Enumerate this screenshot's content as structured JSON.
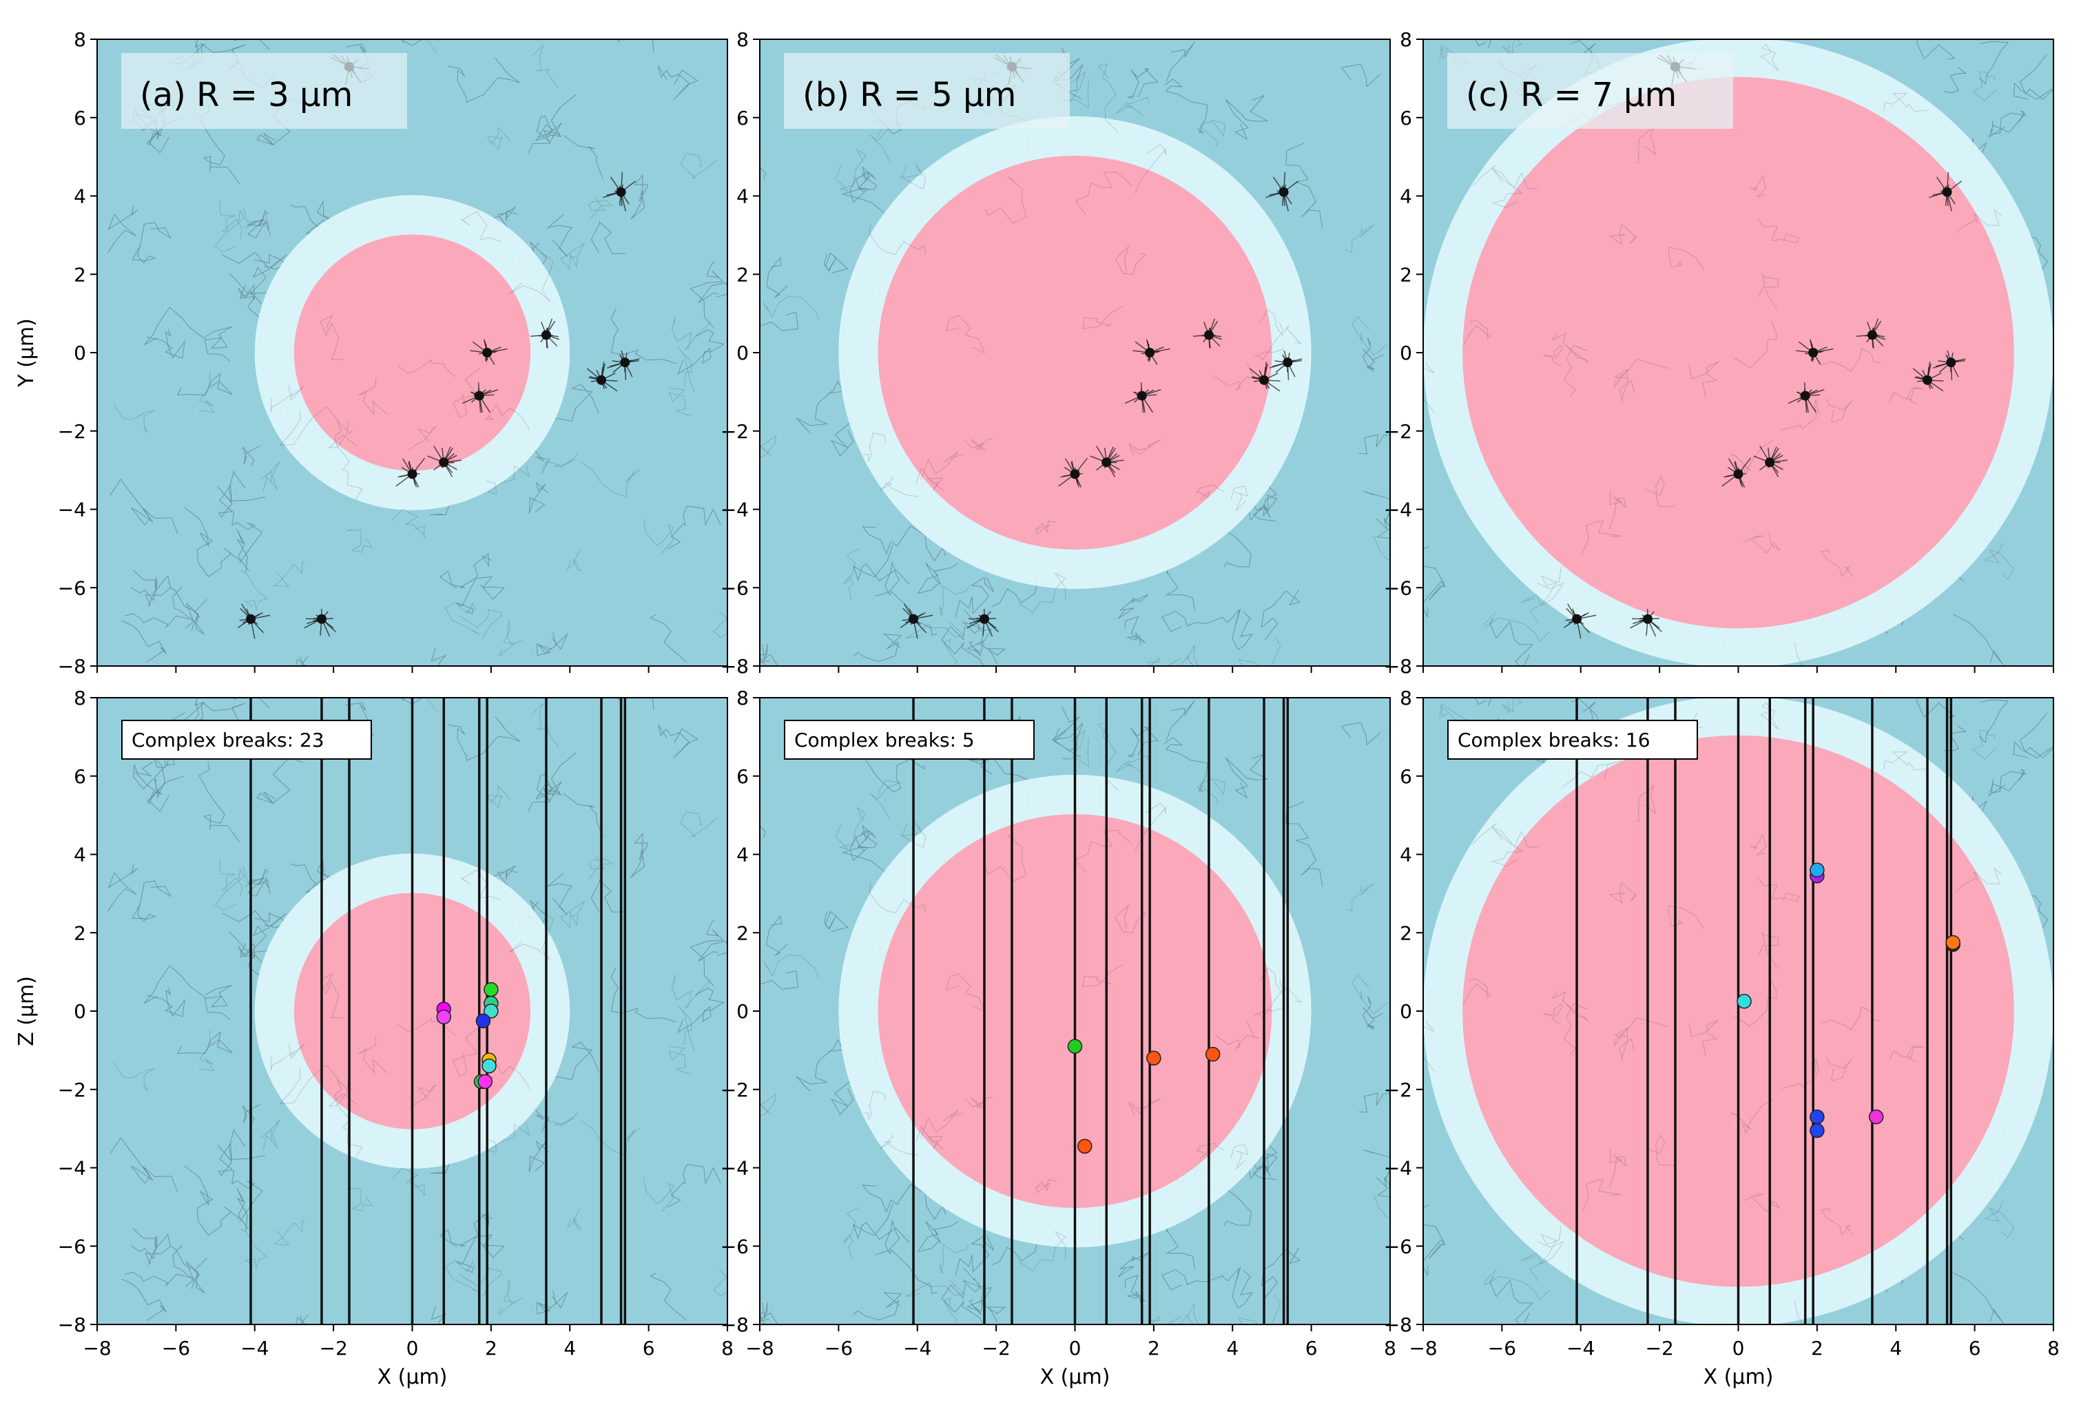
{
  "figure": {
    "ylabel_top": "Y (μm)",
    "ylabel_bottom": "Z (μm)",
    "xlabel": "X (μm)"
  },
  "colors": {
    "background": "#95cfdc",
    "shell": "#dcf6fa",
    "sphere": "#fba8bb",
    "track": "#111111",
    "label_box": "#e6f3f6"
  },
  "chart_data": [
    {
      "type": "scatter",
      "panel": "a-top",
      "title": "(a) R = 3 μm",
      "xlabel": "",
      "ylabel": "Y (μm)",
      "xlim": [
        -8,
        8
      ],
      "ylim": [
        -8,
        8
      ],
      "xticks": [
        -8,
        -6,
        -4,
        -2,
        0,
        2,
        4,
        6,
        8
      ],
      "yticks": [
        -8,
        -6,
        -4,
        -2,
        0,
        2,
        4,
        6,
        8
      ],
      "sphere_radius": 3,
      "shell_radius": 4,
      "track_centers": [
        {
          "x": 1.9,
          "y": 0.0
        },
        {
          "x": 1.7,
          "y": -1.1
        },
        {
          "x": 3.4,
          "y": 0.45
        },
        {
          "x": 5.4,
          "y": -0.25
        },
        {
          "x": 4.8,
          "y": -0.7
        },
        {
          "x": 0.0,
          "y": -3.1
        },
        {
          "x": 0.8,
          "y": -2.8
        },
        {
          "x": 5.3,
          "y": 4.1
        },
        {
          "x": -4.1,
          "y": -6.8
        },
        {
          "x": -2.3,
          "y": -6.8
        },
        {
          "x": -1.6,
          "y": 7.3
        }
      ]
    },
    {
      "type": "scatter",
      "panel": "b-top",
      "title": "(b) R = 5 μm",
      "xlabel": "",
      "ylabel": "",
      "xlim": [
        -8,
        8
      ],
      "ylim": [
        -8,
        8
      ],
      "xticks": [
        -8,
        -6,
        -4,
        -2,
        0,
        2,
        4,
        6,
        8
      ],
      "yticks": [
        -8,
        -6,
        -4,
        -2,
        0,
        2,
        4,
        6,
        8
      ],
      "sphere_radius": 5,
      "shell_radius": 6,
      "track_centers": [
        {
          "x": 1.9,
          "y": 0.0
        },
        {
          "x": 1.7,
          "y": -1.1
        },
        {
          "x": 3.4,
          "y": 0.45
        },
        {
          "x": 5.4,
          "y": -0.25
        },
        {
          "x": 4.8,
          "y": -0.7
        },
        {
          "x": 0.0,
          "y": -3.1
        },
        {
          "x": 0.8,
          "y": -2.8
        },
        {
          "x": 5.3,
          "y": 4.1
        },
        {
          "x": -4.1,
          "y": -6.8
        },
        {
          "x": -2.3,
          "y": -6.8
        },
        {
          "x": -1.6,
          "y": 7.3
        }
      ]
    },
    {
      "type": "scatter",
      "panel": "c-top",
      "title": "(c) R = 7 μm",
      "xlabel": "",
      "ylabel": "",
      "xlim": [
        -8,
        8
      ],
      "ylim": [
        -8,
        8
      ],
      "xticks": [
        -8,
        -6,
        -4,
        -2,
        0,
        2,
        4,
        6,
        8
      ],
      "yticks": [
        -8,
        -6,
        -4,
        -2,
        0,
        2,
        4,
        6,
        8
      ],
      "sphere_radius": 7,
      "shell_radius": 8,
      "track_centers": [
        {
          "x": 1.9,
          "y": 0.0
        },
        {
          "x": 1.7,
          "y": -1.1
        },
        {
          "x": 3.4,
          "y": 0.45
        },
        {
          "x": 5.4,
          "y": -0.25
        },
        {
          "x": 4.8,
          "y": -0.7
        },
        {
          "x": 0.0,
          "y": -3.1
        },
        {
          "x": 0.8,
          "y": -2.8
        },
        {
          "x": 5.3,
          "y": 4.1
        },
        {
          "x": -4.1,
          "y": -6.8
        },
        {
          "x": -2.3,
          "y": -6.8
        },
        {
          "x": -1.6,
          "y": 7.3
        }
      ]
    },
    {
      "type": "scatter",
      "panel": "a-bottom",
      "annotation": "Complex breaks: 23",
      "xlabel": "X (μm)",
      "ylabel": "Z (μm)",
      "xlim": [
        -8,
        8
      ],
      "ylim": [
        -8,
        8
      ],
      "xticks": [
        -8,
        -6,
        -4,
        -2,
        0,
        2,
        4,
        6,
        8
      ],
      "yticks": [
        -8,
        -6,
        -4,
        -2,
        0,
        2,
        4,
        6,
        8
      ],
      "sphere_radius": 3,
      "shell_radius": 4,
      "track_x": [
        -4.1,
        -2.3,
        -1.6,
        0.0,
        0.8,
        1.7,
        1.9,
        3.4,
        4.8,
        5.3,
        5.4
      ],
      "points": [
        {
          "x": 0.8,
          "y": 0.05,
          "color": "#ff00ff"
        },
        {
          "x": 0.8,
          "y": -0.15,
          "color": "#ee44ff"
        },
        {
          "x": 2.0,
          "y": 0.55,
          "color": "#22dd22"
        },
        {
          "x": 2.0,
          "y": 0.2,
          "color": "#33cc88"
        },
        {
          "x": 2.0,
          "y": 0.0,
          "color": "#44ddcc"
        },
        {
          "x": 1.8,
          "y": -0.25,
          "color": "#2233ee"
        },
        {
          "x": 1.95,
          "y": -1.25,
          "color": "#ffbb00"
        },
        {
          "x": 1.95,
          "y": -1.4,
          "color": "#44dddd"
        },
        {
          "x": 1.75,
          "y": -1.8,
          "color": "#22cc44"
        },
        {
          "x": 1.85,
          "y": -1.8,
          "color": "#ff33ee"
        }
      ]
    },
    {
      "type": "scatter",
      "panel": "b-bottom",
      "annotation": "Complex breaks: 5",
      "xlabel": "X (μm)",
      "ylabel": "",
      "xlim": [
        -8,
        8
      ],
      "ylim": [
        -8,
        8
      ],
      "xticks": [
        -8,
        -6,
        -4,
        -2,
        0,
        2,
        4,
        6,
        8
      ],
      "yticks": [
        -8,
        -6,
        -4,
        -2,
        0,
        2,
        4,
        6,
        8
      ],
      "sphere_radius": 5,
      "shell_radius": 6,
      "track_x": [
        -4.1,
        -2.3,
        -1.6,
        0.0,
        0.8,
        1.7,
        1.9,
        3.4,
        4.8,
        5.3,
        5.4
      ],
      "points": [
        {
          "x": 0.0,
          "y": -0.9,
          "color": "#22cc22"
        },
        {
          "x": 2.0,
          "y": -1.2,
          "color": "#ff5511"
        },
        {
          "x": 3.5,
          "y": -1.1,
          "color": "#ff5511"
        },
        {
          "x": 0.25,
          "y": -3.45,
          "color": "#ff5511"
        }
      ]
    },
    {
      "type": "scatter",
      "panel": "c-bottom",
      "annotation": "Complex breaks: 16",
      "xlabel": "X (μm)",
      "ylabel": "",
      "xlim": [
        -8,
        8
      ],
      "ylim": [
        -8,
        8
      ],
      "xticks": [
        -8,
        -6,
        -4,
        -2,
        0,
        2,
        4,
        6,
        8
      ],
      "yticks": [
        -8,
        -6,
        -4,
        -2,
        0,
        2,
        4,
        6,
        8
      ],
      "sphere_radius": 7,
      "shell_radius": 8,
      "track_x": [
        -4.1,
        -2.3,
        -1.6,
        0.0,
        0.8,
        1.7,
        1.9,
        3.4,
        4.8,
        5.3,
        5.4
      ],
      "points": [
        {
          "x": 2.0,
          "y": 3.45,
          "color": "#aa22ee"
        },
        {
          "x": 2.0,
          "y": 3.6,
          "color": "#22aaee"
        },
        {
          "x": 5.45,
          "y": 1.7,
          "color": "#222222"
        },
        {
          "x": 5.45,
          "y": 1.75,
          "color": "#ff7711"
        },
        {
          "x": 0.15,
          "y": 0.25,
          "color": "#33dddd"
        },
        {
          "x": 2.0,
          "y": -2.7,
          "color": "#2244ee"
        },
        {
          "x": 2.0,
          "y": -3.05,
          "color": "#2244ee"
        },
        {
          "x": 3.5,
          "y": -2.7,
          "color": "#ee33dd"
        }
      ]
    }
  ]
}
